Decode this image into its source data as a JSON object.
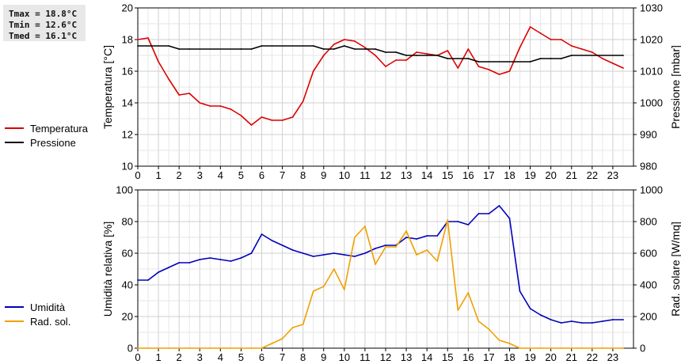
{
  "stats": {
    "tmax": "Tmax = 18.8°C",
    "tmin": "Tmin = 12.6°C",
    "tmed": "Tmed = 16.1°C"
  },
  "chart_data": [
    {
      "type": "line",
      "grid": true,
      "legend_position": "left",
      "x_ticks": [
        0,
        1,
        2,
        3,
        4,
        5,
        6,
        7,
        8,
        9,
        10,
        11,
        12,
        13,
        14,
        15,
        16,
        17,
        18,
        19,
        20,
        21,
        22,
        23
      ],
      "xlim": [
        0,
        24
      ],
      "ylabel": "Temperatura [°C]",
      "ylim": [
        10,
        20
      ],
      "y_ticks": [
        10,
        12,
        14,
        16,
        18,
        20
      ],
      "y2label": "Pressione [mbar]",
      "y2lim": [
        980,
        1030
      ],
      "y2_ticks": [
        980,
        990,
        1000,
        1010,
        1020,
        1030
      ],
      "series": [
        {
          "name": "Temperatura",
          "axis": "left",
          "color": "#dd0000",
          "x": [
            0,
            0.5,
            1,
            1.5,
            2,
            2.5,
            3,
            3.5,
            4,
            4.5,
            5,
            5.5,
            6,
            6.5,
            7,
            7.5,
            8,
            8.5,
            9,
            9.5,
            10,
            10.5,
            11,
            11.5,
            12,
            12.5,
            13,
            13.5,
            14,
            14.5,
            15,
            15.5,
            16,
            16.5,
            17,
            17.5,
            18,
            18.5,
            19,
            19.5,
            20,
            20.5,
            21,
            21.5,
            22,
            22.5,
            23,
            23.5
          ],
          "values": [
            18.0,
            18.1,
            16.6,
            15.5,
            14.5,
            14.6,
            14.0,
            13.8,
            13.8,
            13.6,
            13.2,
            12.6,
            13.1,
            12.9,
            12.9,
            13.1,
            14.1,
            16.0,
            17.0,
            17.7,
            18.0,
            17.9,
            17.5,
            17.0,
            16.3,
            16.7,
            16.7,
            17.2,
            17.1,
            17.0,
            17.3,
            16.2,
            17.4,
            16.3,
            16.1,
            15.8,
            16.0,
            17.5,
            18.8,
            18.4,
            18.0,
            18.0,
            17.6,
            17.4,
            17.2,
            16.8,
            16.5,
            16.2
          ]
        },
        {
          "name": "Pressione",
          "axis": "right",
          "color": "#000000",
          "x": [
            0,
            1.5,
            2,
            2.5,
            5,
            5.5,
            6,
            8.5,
            9,
            9.5,
            10,
            10.5,
            11,
            11.5,
            12,
            12.5,
            13,
            13.5,
            14,
            14.5,
            15,
            16,
            16.5,
            19,
            19.5,
            20,
            20.5,
            21,
            23.5
          ],
          "values": [
            1018,
            1018,
            1017,
            1017,
            1017,
            1017,
            1018,
            1018,
            1017,
            1017,
            1018,
            1017,
            1017,
            1017,
            1016,
            1016,
            1015,
            1015,
            1015,
            1015,
            1014,
            1014,
            1013,
            1013,
            1014,
            1014,
            1014,
            1015,
            1015
          ]
        }
      ]
    },
    {
      "type": "line",
      "grid": true,
      "legend_position": "left",
      "x_ticks": [
        0,
        1,
        2,
        3,
        4,
        5,
        6,
        7,
        8,
        9,
        10,
        11,
        12,
        13,
        14,
        15,
        16,
        17,
        18,
        19,
        20,
        21,
        22,
        23
      ],
      "xlim": [
        0,
        24
      ],
      "ylabel": "Umidità relativa [%]",
      "ylim": [
        0,
        100
      ],
      "y_ticks": [
        0,
        20,
        40,
        60,
        80,
        100
      ],
      "y2label": "Rad. solare [W/mq]",
      "y2lim": [
        0,
        1000
      ],
      "y2_ticks": [
        0,
        200,
        400,
        600,
        800,
        1000
      ],
      "series": [
        {
          "name": "Umidità",
          "axis": "left",
          "color": "#0000bb",
          "x": [
            0,
            0.5,
            1,
            1.5,
            2,
            2.5,
            3,
            3.5,
            4,
            4.5,
            5,
            5.5,
            6,
            6.5,
            7,
            7.5,
            8,
            8.5,
            9,
            9.5,
            10,
            10.5,
            11,
            11.5,
            12,
            12.5,
            13,
            13.5,
            14,
            14.5,
            15,
            15.5,
            16,
            16.5,
            17,
            17.5,
            18,
            18.5,
            19,
            19.5,
            20,
            20.5,
            21,
            21.5,
            22,
            22.5,
            23,
            23.5
          ],
          "values": [
            43,
            43,
            48,
            51,
            54,
            54,
            56,
            57,
            56,
            55,
            57,
            60,
            72,
            68,
            65,
            62,
            60,
            58,
            59,
            60,
            59,
            58,
            60,
            63,
            65,
            65,
            70,
            69,
            71,
            71,
            80,
            80,
            78,
            85,
            85,
            90,
            82,
            36,
            25,
            21,
            18,
            16,
            17,
            16,
            16,
            17,
            18,
            18
          ]
        },
        {
          "name": "Rad. sol.",
          "axis": "right",
          "color": "#f0a000",
          "x": [
            0,
            0.5,
            1,
            1.5,
            2,
            2.5,
            3,
            3.5,
            4,
            4.5,
            5,
            5.5,
            6,
            6.5,
            7,
            7.5,
            8,
            8.5,
            9,
            9.5,
            10,
            10.5,
            11,
            11.5,
            12,
            12.5,
            13,
            13.5,
            14,
            14.5,
            15,
            15.5,
            16,
            16.5,
            17,
            17.5,
            18,
            18.5,
            19,
            19.5,
            20,
            20.5,
            21,
            21.5,
            22,
            22.5,
            23,
            23.5
          ],
          "values": [
            0,
            0,
            0,
            0,
            0,
            0,
            0,
            0,
            0,
            0,
            0,
            0,
            0,
            30,
            60,
            130,
            150,
            360,
            390,
            500,
            370,
            700,
            770,
            530,
            640,
            640,
            740,
            590,
            620,
            550,
            810,
            240,
            350,
            170,
            120,
            50,
            30,
            0,
            0,
            0,
            0,
            0,
            0,
            0,
            0,
            0,
            0,
            0
          ]
        }
      ]
    }
  ]
}
